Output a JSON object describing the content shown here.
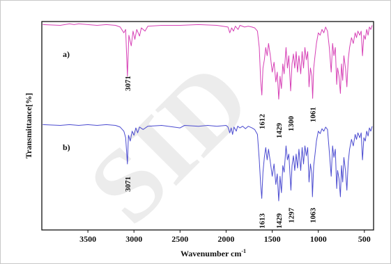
{
  "chart_data": {
    "type": "line",
    "title": "",
    "xlabel": "Wavenumber cm",
    "xlabel_superscript": "-1",
    "ylabel": "Transmittance[%]",
    "xlim": [
      4000,
      400
    ],
    "x_reversed": true,
    "x_ticks": [
      3500,
      3000,
      2500,
      2000,
      1500,
      1000,
      500
    ],
    "grid": false,
    "legend": "none",
    "series": [
      {
        "name": "a)",
        "color": "#d63fb5",
        "peaks": [
          {
            "x": 3071,
            "label": "3071"
          },
          {
            "x": 1612,
            "label": "1612"
          },
          {
            "x": 1429,
            "label": "1429"
          },
          {
            "x": 1300,
            "label": "1300"
          },
          {
            "x": 1061,
            "label": "1061"
          }
        ],
        "points": [
          [
            3990,
            0.02
          ],
          [
            3800,
            0.03
          ],
          [
            3700,
            0.01
          ],
          [
            3650,
            0.02
          ],
          [
            3600,
            0.01
          ],
          [
            3500,
            0.02
          ],
          [
            3400,
            0.03
          ],
          [
            3300,
            0.02
          ],
          [
            3200,
            0.03
          ],
          [
            3150,
            0.05
          ],
          [
            3110,
            0.12
          ],
          [
            3090,
            0.08
          ],
          [
            3071,
            0.65
          ],
          [
            3055,
            0.15
          ],
          [
            3030,
            0.28
          ],
          [
            3010,
            0.1
          ],
          [
            2990,
            0.2
          ],
          [
            2970,
            0.08
          ],
          [
            2940,
            0.16
          ],
          [
            2920,
            0.06
          ],
          [
            2880,
            0.1
          ],
          [
            2850,
            0.04
          ],
          [
            2700,
            0.03
          ],
          [
            2500,
            0.03
          ],
          [
            2300,
            0.02
          ],
          [
            2100,
            0.03
          ],
          [
            1980,
            0.05
          ],
          [
            1960,
            0.12
          ],
          [
            1940,
            0.06
          ],
          [
            1920,
            0.1
          ],
          [
            1900,
            0.04
          ],
          [
            1870,
            0.08
          ],
          [
            1850,
            0.03
          ],
          [
            1800,
            0.05
          ],
          [
            1760,
            0.04
          ],
          [
            1720,
            0.05
          ],
          [
            1690,
            0.06
          ],
          [
            1660,
            0.1
          ],
          [
            1640,
            0.3
          ],
          [
            1625,
            0.7
          ],
          [
            1612,
            0.88
          ],
          [
            1600,
            0.55
          ],
          [
            1585,
            0.45
          ],
          [
            1570,
            0.3
          ],
          [
            1555,
            0.4
          ],
          [
            1540,
            0.25
          ],
          [
            1520,
            0.4
          ],
          [
            1500,
            0.6
          ],
          [
            1480,
            0.48
          ],
          [
            1460,
            0.72
          ],
          [
            1445,
            0.6
          ],
          [
            1429,
            0.93
          ],
          [
            1415,
            0.65
          ],
          [
            1400,
            0.8
          ],
          [
            1385,
            0.5
          ],
          [
            1370,
            0.62
          ],
          [
            1350,
            0.3
          ],
          [
            1335,
            0.55
          ],
          [
            1320,
            0.4
          ],
          [
            1300,
            0.83
          ],
          [
            1285,
            0.5
          ],
          [
            1270,
            0.38
          ],
          [
            1255,
            0.55
          ],
          [
            1240,
            0.35
          ],
          [
            1225,
            0.6
          ],
          [
            1210,
            0.4
          ],
          [
            1190,
            0.62
          ],
          [
            1175,
            0.35
          ],
          [
            1160,
            0.55
          ],
          [
            1145,
            0.3
          ],
          [
            1130,
            0.45
          ],
          [
            1115,
            0.35
          ],
          [
            1100,
            0.78
          ],
          [
            1085,
            0.55
          ],
          [
            1070,
            0.65
          ],
          [
            1061,
            0.92
          ],
          [
            1050,
            0.55
          ],
          [
            1035,
            0.4
          ],
          [
            1020,
            0.25
          ],
          [
            1000,
            0.12
          ],
          [
            980,
            0.15
          ],
          [
            960,
            0.08
          ],
          [
            940,
            0.12
          ],
          [
            920,
            0.05
          ],
          [
            900,
            0.1
          ],
          [
            880,
            0.3
          ],
          [
            860,
            0.6
          ],
          [
            845,
            0.25
          ],
          [
            830,
            0.4
          ],
          [
            815,
            0.3
          ],
          [
            800,
            0.75
          ],
          [
            790,
            0.55
          ],
          [
            775,
            0.65
          ],
          [
            760,
            0.86
          ],
          [
            748,
            0.5
          ],
          [
            735,
            0.7
          ],
          [
            722,
            0.4
          ],
          [
            705,
            0.55
          ],
          [
            690,
            0.78
          ],
          [
            675,
            0.45
          ],
          [
            660,
            0.3
          ],
          [
            640,
            0.18
          ],
          [
            620,
            0.25
          ],
          [
            600,
            0.12
          ],
          [
            585,
            0.18
          ],
          [
            570,
            0.1
          ],
          [
            550,
            0.15
          ],
          [
            535,
            0.1
          ],
          [
            520,
            0.4
          ],
          [
            505,
            0.15
          ],
          [
            490,
            0.2
          ],
          [
            475,
            0.08
          ],
          [
            460,
            0.15
          ],
          [
            445,
            0.05
          ],
          [
            430,
            0.08
          ],
          [
            415,
            0.03
          ]
        ]
      },
      {
        "name": "b)",
        "color": "#4a4ad0",
        "peaks": [
          {
            "x": 3071,
            "label": "3071"
          },
          {
            "x": 1613,
            "label": "1613"
          },
          {
            "x": 1429,
            "label": "1429"
          },
          {
            "x": 1297,
            "label": "1297"
          },
          {
            "x": 1063,
            "label": "1063"
          }
        ],
        "points": [
          [
            3990,
            0.02
          ],
          [
            3800,
            0.03
          ],
          [
            3700,
            0.02
          ],
          [
            3600,
            0.03
          ],
          [
            3500,
            0.02
          ],
          [
            3400,
            0.03
          ],
          [
            3300,
            0.02
          ],
          [
            3200,
            0.03
          ],
          [
            3150,
            0.05
          ],
          [
            3110,
            0.1
          ],
          [
            3090,
            0.18
          ],
          [
            3071,
            0.5
          ],
          [
            3060,
            0.15
          ],
          [
            3040,
            0.22
          ],
          [
            3020,
            0.1
          ],
          [
            3000,
            0.15
          ],
          [
            2980,
            0.06
          ],
          [
            2960,
            0.12
          ],
          [
            2940,
            0.05
          ],
          [
            2900,
            0.08
          ],
          [
            2850,
            0.04
          ],
          [
            2700,
            0.03
          ],
          [
            2500,
            0.06
          ],
          [
            2450,
            0.03
          ],
          [
            2300,
            0.04
          ],
          [
            2200,
            0.03
          ],
          [
            2100,
            0.04
          ],
          [
            2000,
            0.03
          ],
          [
            1980,
            0.05
          ],
          [
            1960,
            0.12
          ],
          [
            1945,
            0.06
          ],
          [
            1930,
            0.14
          ],
          [
            1915,
            0.05
          ],
          [
            1890,
            0.1
          ],
          [
            1875,
            0.04
          ],
          [
            1850,
            0.06
          ],
          [
            1820,
            0.04
          ],
          [
            1790,
            0.07
          ],
          [
            1760,
            0.04
          ],
          [
            1720,
            0.06
          ],
          [
            1690,
            0.08
          ],
          [
            1660,
            0.14
          ],
          [
            1640,
            0.45
          ],
          [
            1625,
            0.75
          ],
          [
            1613,
            0.92
          ],
          [
            1600,
            0.6
          ],
          [
            1585,
            0.42
          ],
          [
            1570,
            0.3
          ],
          [
            1555,
            0.45
          ],
          [
            1540,
            0.32
          ],
          [
            1520,
            0.48
          ],
          [
            1500,
            0.65
          ],
          [
            1480,
            0.5
          ],
          [
            1460,
            0.75
          ],
          [
            1445,
            0.62
          ],
          [
            1429,
            0.95
          ],
          [
            1415,
            0.65
          ],
          [
            1400,
            0.85
          ],
          [
            1385,
            0.52
          ],
          [
            1370,
            0.6
          ],
          [
            1350,
            0.28
          ],
          [
            1335,
            0.45
          ],
          [
            1320,
            0.38
          ],
          [
            1297,
            0.82
          ],
          [
            1285,
            0.52
          ],
          [
            1270,
            0.4
          ],
          [
            1255,
            0.58
          ],
          [
            1240,
            0.38
          ],
          [
            1225,
            0.55
          ],
          [
            1210,
            0.32
          ],
          [
            1190,
            0.58
          ],
          [
            1175,
            0.3
          ],
          [
            1160,
            0.5
          ],
          [
            1145,
            0.28
          ],
          [
            1130,
            0.4
          ],
          [
            1115,
            0.3
          ],
          [
            1100,
            0.72
          ],
          [
            1085,
            0.5
          ],
          [
            1070,
            0.62
          ],
          [
            1063,
            0.9
          ],
          [
            1050,
            0.52
          ],
          [
            1035,
            0.38
          ],
          [
            1020,
            0.22
          ],
          [
            1000,
            0.1
          ],
          [
            980,
            0.13
          ],
          [
            960,
            0.07
          ],
          [
            940,
            0.1
          ],
          [
            920,
            0.05
          ],
          [
            900,
            0.08
          ],
          [
            880,
            0.35
          ],
          [
            860,
            0.65
          ],
          [
            845,
            0.28
          ],
          [
            830,
            0.42
          ],
          [
            815,
            0.32
          ],
          [
            800,
            0.8
          ],
          [
            790,
            0.58
          ],
          [
            775,
            0.68
          ],
          [
            760,
            0.9
          ],
          [
            748,
            0.52
          ],
          [
            735,
            0.72
          ],
          [
            722,
            0.42
          ],
          [
            705,
            0.58
          ],
          [
            690,
            0.82
          ],
          [
            675,
            0.48
          ],
          [
            660,
            0.32
          ],
          [
            640,
            0.2
          ],
          [
            620,
            0.28
          ],
          [
            600,
            0.14
          ],
          [
            585,
            0.2
          ],
          [
            570,
            0.12
          ],
          [
            550,
            0.18
          ],
          [
            535,
            0.12
          ],
          [
            520,
            0.45
          ],
          [
            505,
            0.18
          ],
          [
            490,
            0.22
          ],
          [
            475,
            0.1
          ],
          [
            460,
            0.16
          ],
          [
            445,
            0.06
          ],
          [
            430,
            0.1
          ],
          [
            415,
            0.04
          ]
        ]
      }
    ]
  },
  "watermark": {
    "text": "SID"
  }
}
